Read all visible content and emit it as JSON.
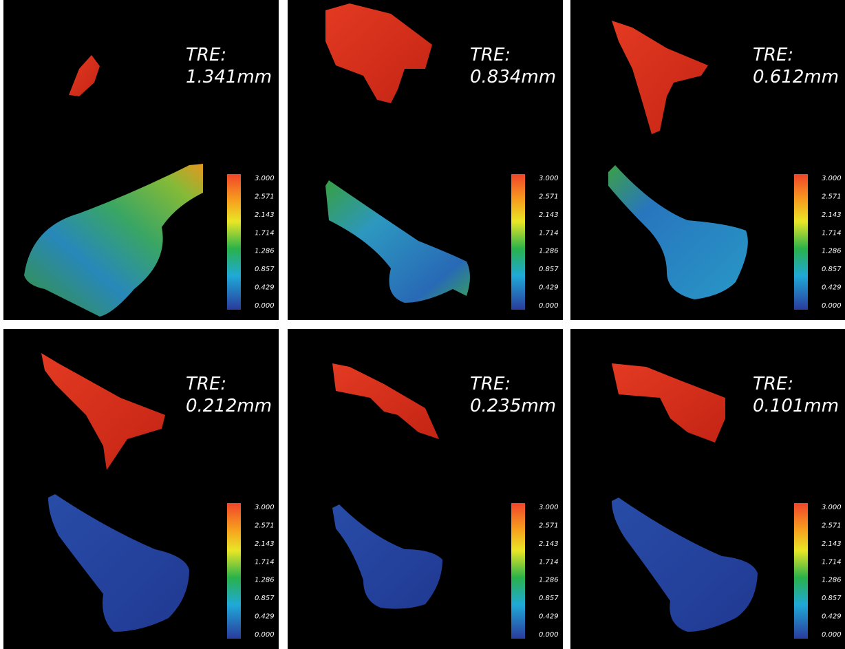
{
  "panels": [
    {
      "tre_label": "TRE:",
      "tre_value": "1.341mm",
      "colorbar_ticks": [
        "3.000",
        "2.571",
        "2.143",
        "1.714",
        "1.286",
        "0.857",
        "0.429",
        "0.000"
      ]
    },
    {
      "tre_label": "TRE:",
      "tre_value": "0.834mm",
      "colorbar_ticks": [
        "3.000",
        "2.571",
        "2.143",
        "1.714",
        "1.286",
        "0.857",
        "0.429",
        "0.000"
      ]
    },
    {
      "tre_label": "TRE:",
      "tre_value": "0.612mm",
      "colorbar_ticks": [
        "3.000",
        "2.571",
        "2.143",
        "1.714",
        "1.286",
        "0.857",
        "0.429",
        "0.000"
      ]
    },
    {
      "tre_label": "TRE:",
      "tre_value": "0.212mm",
      "colorbar_ticks": [
        "3.000",
        "2.571",
        "2.143",
        "1.714",
        "1.286",
        "0.857",
        "0.429",
        "0.000"
      ]
    },
    {
      "tre_label": "TRE:",
      "tre_value": "0.235mm",
      "colorbar_ticks": [
        "3.000",
        "2.571",
        "2.143",
        "1.714",
        "1.286",
        "0.857",
        "0.429",
        "0.000"
      ]
    },
    {
      "tre_label": "TRE:",
      "tre_value": "0.101mm",
      "colorbar_ticks": [
        "3.000",
        "2.571",
        "2.143",
        "1.714",
        "1.286",
        "0.857",
        "0.429",
        "0.000"
      ]
    }
  ]
}
